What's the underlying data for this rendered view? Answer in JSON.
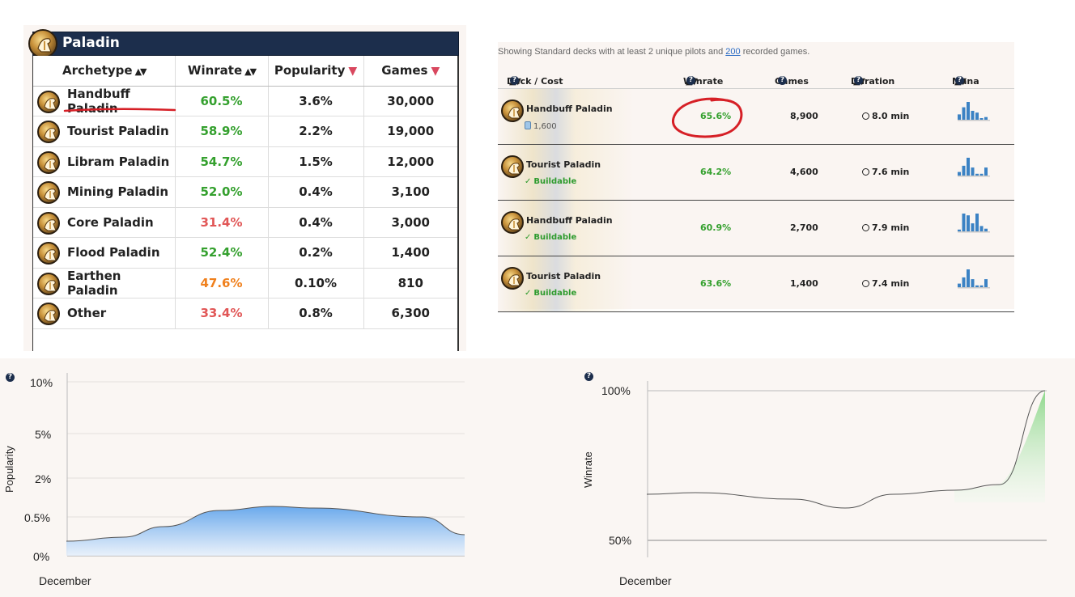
{
  "archetypes": {
    "class_name": "Paladin",
    "columns": [
      "Archetype",
      "Winrate",
      "Popularity",
      "Games"
    ],
    "rows": [
      {
        "name": "Handbuff Paladin",
        "winrate": "60.5%",
        "wr_color": "green",
        "popularity": "3.6%",
        "games": "30,000"
      },
      {
        "name": "Tourist Paladin",
        "winrate": "58.9%",
        "wr_color": "green",
        "popularity": "2.2%",
        "games": "19,000"
      },
      {
        "name": "Libram Paladin",
        "winrate": "54.7%",
        "wr_color": "green",
        "popularity": "1.5%",
        "games": "12,000"
      },
      {
        "name": "Mining Paladin",
        "winrate": "52.0%",
        "wr_color": "green",
        "popularity": "0.4%",
        "games": "3,100"
      },
      {
        "name": "Core Paladin",
        "winrate": "31.4%",
        "wr_color": "red",
        "popularity": "0.4%",
        "games": "3,000"
      },
      {
        "name": "Flood Paladin",
        "winrate": "52.4%",
        "wr_color": "green",
        "popularity": "0.2%",
        "games": "1,400"
      },
      {
        "name": "Earthen Paladin",
        "winrate": "47.6%",
        "wr_color": "orange",
        "popularity": "0.10%",
        "games": "810"
      },
      {
        "name": "Other",
        "winrate": "33.4%",
        "wr_color": "red",
        "popularity": "0.8%",
        "games": "6,300"
      }
    ]
  },
  "decks": {
    "note_prefix": "Showing Standard decks with at least 2 unique pilots and ",
    "note_link": "200",
    "note_suffix": " recorded games.",
    "columns": [
      "Deck / Cost",
      "Winrate",
      "Games",
      "Duration",
      "Mana"
    ],
    "rows": [
      {
        "name": "Handbuff Paladin",
        "sub": "1,600",
        "sub_type": "cost",
        "winrate": "65.6%",
        "games": "8,900",
        "duration": "8.0 min",
        "mana": [
          0.3,
          0.7,
          1.0,
          0.5,
          0.4,
          0.0,
          0.15
        ]
      },
      {
        "name": "Tourist Paladin",
        "sub": "Buildable",
        "sub_type": "buildable",
        "winrate": "64.2%",
        "games": "4,600",
        "duration": "7.6 min",
        "mana": [
          0.2,
          0.55,
          1.0,
          0.45,
          0.1,
          0.1,
          0.45
        ]
      },
      {
        "name": "Handbuff Paladin",
        "sub": "Buildable",
        "sub_type": "buildable",
        "winrate": "60.9%",
        "games": "2,700",
        "duration": "7.9 min",
        "mana": [
          0.1,
          1.0,
          0.9,
          0.45,
          1.0,
          0.3,
          0.15
        ]
      },
      {
        "name": "Tourist Paladin",
        "sub": "Buildable",
        "sub_type": "buildable",
        "winrate": "63.6%",
        "games": "1,400",
        "duration": "7.4 min",
        "mana": [
          0.2,
          0.55,
          1.0,
          0.45,
          0.1,
          0.1,
          0.45
        ]
      }
    ]
  },
  "colors": {
    "green": "#34a02e",
    "red": "#e15656",
    "orange": "#f0801c",
    "header_navy": "#1c2e4c",
    "mana_blue": "#3b82c4",
    "annotation_red": "#d61f26"
  },
  "chart_data": [
    {
      "type": "area",
      "ylabel": "Popularity",
      "xlabel": "December",
      "yticks": [
        "10%",
        "5%",
        "2%",
        "0.5%",
        "0%"
      ],
      "x": [
        0,
        1,
        2,
        3,
        4,
        5,
        6,
        7
      ],
      "values": [
        0.2,
        0.35,
        0.9,
        1.15,
        1.0,
        0.6,
        0.55,
        0.2
      ],
      "scale": "nonlinear"
    },
    {
      "type": "area",
      "ylabel": "Winrate",
      "xlabel": "December",
      "yticks": [
        "100%",
        "50%"
      ],
      "x": [
        0,
        1,
        2,
        3,
        4,
        5,
        6,
        7
      ],
      "values": [
        64,
        65,
        62,
        60,
        65,
        67,
        70,
        100
      ]
    }
  ]
}
